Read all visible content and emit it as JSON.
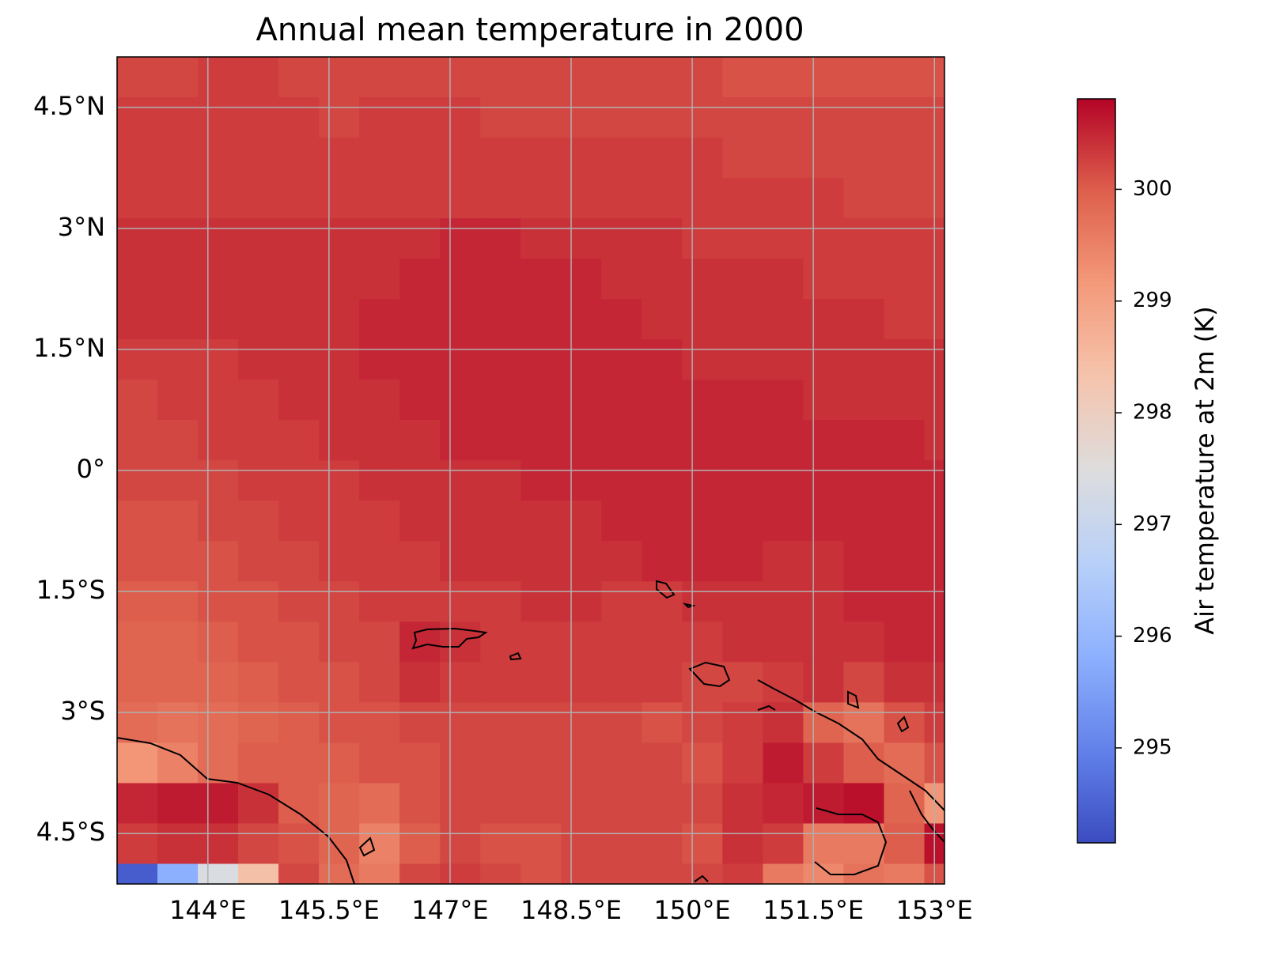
{
  "chart_data": {
    "type": "heatmap",
    "title": "Annual mean temperature in 2000",
    "colormap": "coolwarm",
    "xlim": [
      142.875,
      153.125
    ],
    "ylim": [
      -5.125,
      5.125
    ],
    "xticks": [
      {
        "value": 144,
        "label": "144°E"
      },
      {
        "value": 145.5,
        "label": "145.5°E"
      },
      {
        "value": 147,
        "label": "147°E"
      },
      {
        "value": 148.5,
        "label": "148.5°E"
      },
      {
        "value": 150,
        "label": "150°E"
      },
      {
        "value": 151.5,
        "label": "151.5°E"
      },
      {
        "value": 153,
        "label": "153°E"
      }
    ],
    "yticks": [
      {
        "value": 4.5,
        "label": "4.5°N"
      },
      {
        "value": 3,
        "label": "3°N"
      },
      {
        "value": 1.5,
        "label": "1.5°N"
      },
      {
        "value": 0,
        "label": "0°"
      },
      {
        "value": -1.5,
        "label": "1.5°S"
      },
      {
        "value": -3,
        "label": "3°S"
      },
      {
        "value": -4.5,
        "label": "4.5°S"
      }
    ],
    "grid": true,
    "x_edges": [
      142.875,
      143.375,
      143.875,
      144.375,
      144.875,
      145.375,
      145.875,
      146.375,
      146.875,
      147.375,
      147.875,
      148.375,
      148.875,
      149.375,
      149.875,
      150.375,
      150.875,
      151.375,
      151.875,
      152.375,
      152.875,
      153.125
    ],
    "y_edges": [
      5.125,
      4.625,
      4.125,
      3.625,
      3.125,
      2.625,
      2.125,
      1.625,
      1.125,
      0.625,
      0.125,
      -0.375,
      -0.875,
      -1.375,
      -1.875,
      -2.375,
      -2.875,
      -3.375,
      -3.875,
      -4.375,
      -4.875,
      -5.125
    ],
    "values": [
      [
        300.2,
        300.2,
        300.3,
        300.3,
        300.2,
        300.2,
        300.2,
        300.2,
        300.2,
        300.2,
        300.2,
        300.2,
        300.2,
        300.2,
        300.2,
        300.1,
        300.1,
        300.1,
        300.1,
        300.1,
        300.1
      ],
      [
        300.3,
        300.3,
        300.3,
        300.3,
        300.3,
        300.2,
        300.3,
        300.3,
        300.3,
        300.2,
        300.2,
        300.2,
        300.2,
        300.2,
        300.2,
        300.2,
        300.2,
        300.2,
        300.2,
        300.2,
        300.2
      ],
      [
        300.3,
        300.3,
        300.3,
        300.3,
        300.3,
        300.3,
        300.3,
        300.3,
        300.3,
        300.3,
        300.3,
        300.3,
        300.3,
        300.3,
        300.3,
        300.2,
        300.2,
        300.2,
        300.2,
        300.2,
        300.2
      ],
      [
        300.3,
        300.3,
        300.3,
        300.3,
        300.3,
        300.3,
        300.3,
        300.3,
        300.3,
        300.3,
        300.3,
        300.3,
        300.3,
        300.3,
        300.3,
        300.3,
        300.3,
        300.3,
        300.2,
        300.2,
        300.2
      ],
      [
        300.4,
        300.4,
        300.4,
        300.4,
        300.4,
        300.4,
        300.4,
        300.4,
        300.5,
        300.5,
        300.4,
        300.4,
        300.4,
        300.4,
        300.3,
        300.3,
        300.3,
        300.3,
        300.3,
        300.3,
        300.3
      ],
      [
        300.4,
        300.4,
        300.4,
        300.4,
        300.4,
        300.4,
        300.4,
        300.5,
        300.5,
        300.5,
        300.5,
        300.5,
        300.4,
        300.4,
        300.4,
        300.4,
        300.4,
        300.3,
        300.3,
        300.3,
        300.3
      ],
      [
        300.4,
        300.4,
        300.4,
        300.4,
        300.4,
        300.4,
        300.5,
        300.5,
        300.5,
        300.5,
        300.5,
        300.5,
        300.5,
        300.4,
        300.4,
        300.4,
        300.4,
        300.4,
        300.4,
        300.3,
        300.3
      ],
      [
        300.3,
        300.3,
        300.3,
        300.4,
        300.4,
        300.4,
        300.5,
        300.5,
        300.5,
        300.5,
        300.5,
        300.5,
        300.5,
        300.5,
        300.4,
        300.4,
        300.4,
        300.4,
        300.4,
        300.4,
        300.4
      ],
      [
        300.2,
        300.3,
        300.3,
        300.3,
        300.4,
        300.4,
        300.4,
        300.5,
        300.5,
        300.5,
        300.5,
        300.5,
        300.5,
        300.5,
        300.5,
        300.5,
        300.5,
        300.4,
        300.4,
        300.4,
        300.4
      ],
      [
        300.2,
        300.2,
        300.3,
        300.3,
        300.3,
        300.4,
        300.4,
        300.4,
        300.5,
        300.5,
        300.5,
        300.5,
        300.5,
        300.5,
        300.5,
        300.5,
        300.5,
        300.5,
        300.5,
        300.5,
        300.4
      ],
      [
        300.2,
        300.2,
        300.2,
        300.3,
        300.3,
        300.3,
        300.4,
        300.4,
        300.4,
        300.4,
        300.5,
        300.5,
        300.5,
        300.5,
        300.5,
        300.5,
        300.5,
        300.5,
        300.5,
        300.5,
        300.5
      ],
      [
        300.1,
        300.1,
        300.2,
        300.2,
        300.3,
        300.3,
        300.3,
        300.4,
        300.4,
        300.4,
        300.4,
        300.4,
        300.5,
        300.5,
        300.5,
        300.5,
        300.5,
        300.5,
        300.5,
        300.5,
        300.5
      ],
      [
        300.1,
        300.1,
        300.1,
        300.2,
        300.2,
        300.3,
        300.3,
        300.3,
        300.4,
        300.4,
        300.4,
        300.4,
        300.4,
        300.5,
        300.5,
        300.5,
        300.4,
        300.4,
        300.5,
        300.5,
        300.5
      ],
      [
        300.0,
        300.0,
        300.1,
        300.1,
        300.2,
        300.2,
        300.3,
        300.3,
        300.3,
        300.3,
        300.4,
        300.4,
        300.3,
        300.3,
        300.4,
        300.4,
        300.4,
        300.4,
        300.5,
        300.5,
        300.5
      ],
      [
        299.9,
        299.9,
        300.0,
        300.1,
        300.1,
        300.2,
        300.2,
        300.5,
        300.4,
        300.3,
        300.3,
        300.3,
        300.3,
        300.3,
        300.3,
        300.4,
        300.4,
        300.4,
        300.4,
        300.5,
        300.5
      ],
      [
        299.9,
        299.9,
        299.9,
        300.0,
        300.1,
        300.1,
        300.2,
        300.4,
        300.3,
        300.3,
        300.3,
        300.3,
        300.3,
        300.3,
        300.2,
        300.2,
        300.3,
        300.4,
        300.2,
        300.4,
        300.4
      ],
      [
        299.8,
        299.7,
        299.8,
        299.9,
        300.0,
        300.1,
        300.1,
        300.2,
        300.2,
        300.2,
        300.2,
        300.2,
        300.2,
        300.1,
        300.2,
        300.3,
        300.4,
        299.9,
        299.7,
        300.1,
        300.3
      ],
      [
        299.2,
        299.5,
        299.8,
        300.0,
        300.0,
        300.0,
        300.1,
        300.1,
        300.2,
        300.2,
        300.2,
        300.2,
        300.2,
        300.2,
        300.1,
        300.3,
        300.6,
        300.3,
        300.0,
        299.8,
        300.1
      ],
      [
        300.5,
        300.6,
        300.6,
        300.4,
        300.0,
        299.9,
        299.8,
        300.1,
        300.2,
        300.2,
        300.2,
        300.2,
        300.2,
        300.2,
        300.2,
        300.4,
        300.5,
        300.6,
        300.7,
        299.9,
        299.2
      ],
      [
        300.3,
        300.4,
        300.4,
        300.2,
        300.1,
        299.9,
        299.5,
        300.0,
        300.2,
        300.1,
        300.1,
        300.2,
        300.2,
        300.2,
        300.1,
        300.4,
        300.3,
        299.6,
        299.6,
        300.0,
        300.7
      ],
      [
        294.4,
        295.8,
        297.4,
        298.4,
        300.2,
        299.8,
        299.6,
        300.2,
        300.3,
        300.2,
        300.1,
        300.2,
        300.2,
        300.2,
        300.2,
        300.3,
        299.6,
        299.4,
        299.7,
        299.6,
        300.1
      ]
    ],
    "colorbar": {
      "label": "Air temperature at 2m (K)",
      "lim": [
        294.15,
        300.81
      ],
      "ticks": [
        295,
        296,
        297,
        298,
        299,
        300
      ]
    }
  }
}
